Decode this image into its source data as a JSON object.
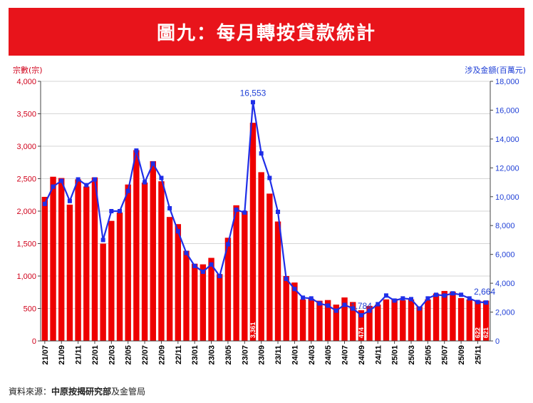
{
  "header": {
    "title": "圖九：每月轉按貸款統計",
    "left_unit": "宗數(宗)",
    "right_unit": "涉及金額(百萬元)"
  },
  "source": {
    "prefix": "資料來源：",
    "bold": "中原按揭研究部",
    "suffix": "及金管局"
  },
  "colors": {
    "banner": "#e8141b",
    "bar": "#ee0000",
    "line": "#1f2ee8",
    "left_axis_text": "#d0021b",
    "right_axis_text": "#1f3fd6"
  },
  "chart_data": {
    "type": "bar+line",
    "x_tick_labels": [
      "21/07",
      "21/09",
      "21/11",
      "22/01",
      "22/03",
      "22/05",
      "22/07",
      "22/09",
      "22/11",
      "23/01",
      "23/03",
      "23/05",
      "23/07",
      "23/09",
      "23/11",
      "24/01",
      "24/03",
      "24/05",
      "24/07",
      "24/09",
      "24/11",
      "25/01",
      "25/03",
      "25/05",
      "25/07",
      "25/09",
      "25/11"
    ],
    "categories": [
      "21/07",
      "21/08",
      "21/09",
      "21/10",
      "21/11",
      "21/12",
      "22/01",
      "22/02",
      "22/03",
      "22/04",
      "22/05",
      "22/06",
      "22/07",
      "22/08",
      "22/09",
      "22/10",
      "22/11",
      "22/12",
      "23/01",
      "23/02",
      "23/03",
      "23/04",
      "23/05",
      "23/06",
      "23/07",
      "23/08",
      "23/09",
      "23/10",
      "23/11",
      "23/12",
      "24/01",
      "24/02",
      "24/03",
      "24/04",
      "24/05",
      "24/06",
      "24/07",
      "24/08",
      "24/09",
      "24/10",
      "24/11",
      "24/12",
      "25/01",
      "25/02",
      "25/03",
      "25/04",
      "25/05",
      "25/06",
      "25/07",
      "25/08",
      "25/09",
      "25/10",
      "25/11",
      "25/12"
    ],
    "series": [
      {
        "axis": "left",
        "type": "bar",
        "values": [
          2220,
          2530,
          2510,
          2100,
          2490,
          2380,
          2520,
          1500,
          1850,
          1980,
          2410,
          2940,
          2440,
          2770,
          2460,
          1910,
          1800,
          1390,
          1190,
          1180,
          1280,
          1030,
          1590,
          2090,
          2000,
          3361,
          2600,
          2270,
          1840,
          1000,
          900,
          640,
          650,
          620,
          630,
          560,
          670,
          600,
          474,
          540,
          560,
          640,
          650,
          630,
          640,
          530,
          640,
          730,
          770,
          760,
          660,
          640,
          622,
          621
        ]
      },
      {
        "axis": "right",
        "type": "line",
        "values": [
          9500,
          10700,
          11100,
          9700,
          11200,
          10800,
          11200,
          7000,
          9000,
          9000,
          10400,
          13200,
          11000,
          12300,
          11300,
          9200,
          7600,
          6100,
          5200,
          4800,
          5300,
          4500,
          6700,
          9100,
          8900,
          16553,
          13000,
          11300,
          8950,
          4300,
          3600,
          3000,
          2950,
          2600,
          2450,
          2100,
          2500,
          2250,
          1784,
          2100,
          2550,
          3150,
          2800,
          2950,
          2900,
          2250,
          2950,
          3200,
          3150,
          3300,
          3200,
          2950,
          2700,
          2664
        ]
      }
    ],
    "annotations": [
      {
        "text": "16,553",
        "series": 1,
        "index": 25,
        "color": "#1f3fd6"
      },
      {
        "text": "1,784",
        "series": 1,
        "index": 38,
        "color": "#1f3fd6"
      },
      {
        "text": "2,664",
        "series": 1,
        "index": 53,
        "color": "#1f3fd6"
      },
      {
        "text": "3,361",
        "series": 0,
        "index": 25,
        "color": "#ffffff"
      },
      {
        "text": "474",
        "series": 0,
        "index": 38,
        "color": "#ffffff"
      },
      {
        "text": "622",
        "series": 0,
        "index": 52,
        "color": "#ffffff"
      },
      {
        "text": "621",
        "series": 0,
        "index": 53,
        "color": "#ffffff"
      }
    ],
    "left_axis": {
      "label": "宗數(宗)",
      "range": [
        0,
        4000
      ],
      "ticks": [
        "0",
        "500",
        "1,000",
        "1,500",
        "2,000",
        "2,500",
        "3,000",
        "3,500",
        "4,000"
      ]
    },
    "right_axis": {
      "label": "涉及金額(百萬元)",
      "range": [
        0,
        18000
      ],
      "ticks": [
        "0",
        "2,000",
        "4,000",
        "6,000",
        "8,000",
        "10,000",
        "12,000",
        "14,000",
        "16,000",
        "18,000"
      ]
    },
    "grid": true,
    "legend": "none"
  }
}
